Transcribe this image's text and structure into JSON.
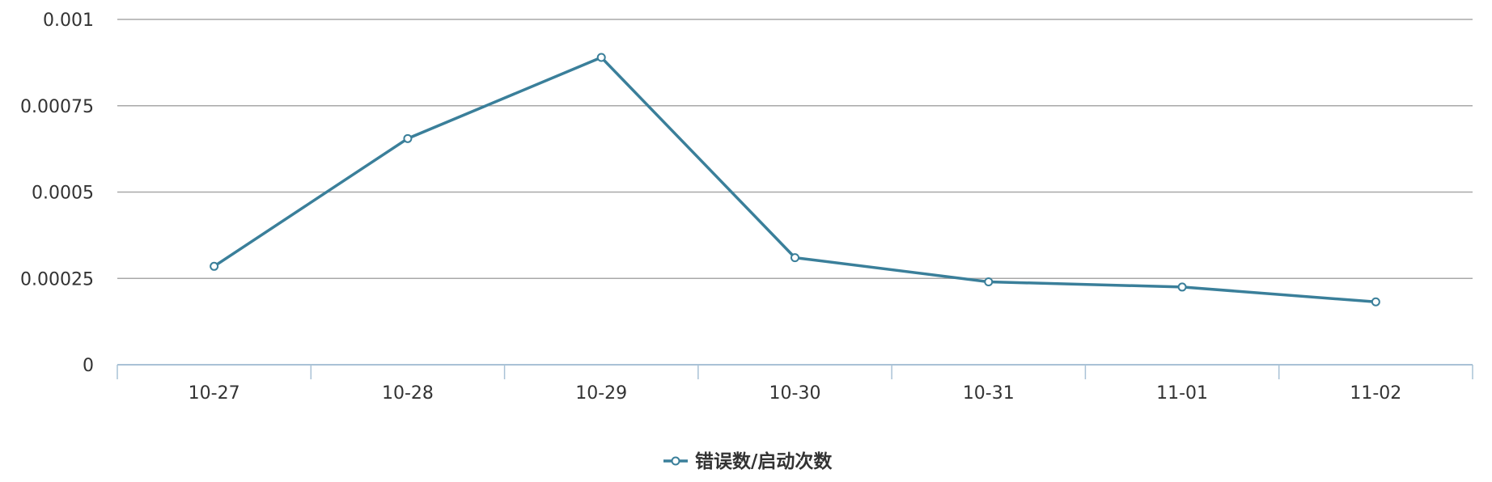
{
  "chart_data": {
    "type": "line",
    "categories": [
      "10-27",
      "10-28",
      "10-29",
      "10-30",
      "10-31",
      "11-01",
      "11-02"
    ],
    "series": [
      {
        "name": "错误数/启动次数",
        "values": [
          0.000285,
          0.000655,
          0.00089,
          0.00031,
          0.00024,
          0.000225,
          0.000182
        ],
        "color": "#3a7f9a"
      }
    ],
    "yticks": [
      "0",
      "0.00025",
      "0.0005",
      "0.00075",
      "0.001"
    ],
    "ylim": [
      0,
      0.001
    ],
    "grid": true,
    "legend_position": "bottom-center",
    "colors": {
      "gridline": "#a8a8a8",
      "axis": "#a9c2d6",
      "text": "#333333"
    }
  }
}
